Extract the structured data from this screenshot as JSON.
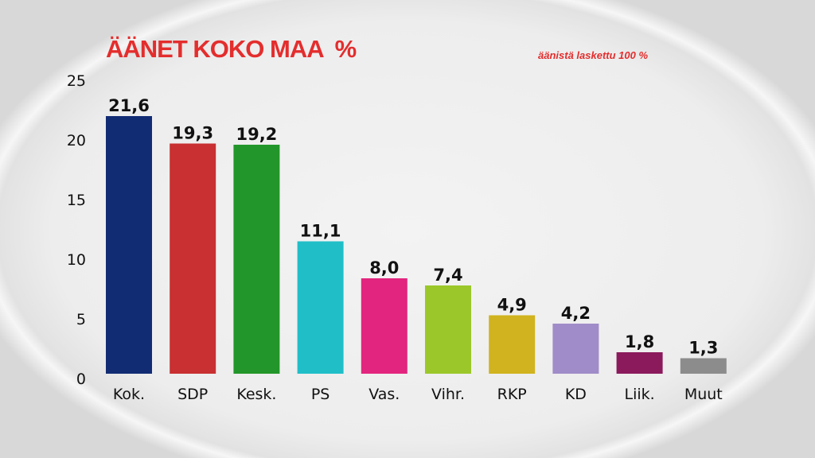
{
  "chart_data": {
    "type": "bar",
    "title": "ÄÄNET KOKO MAA  %",
    "subtitle": "äänistä laskettu 100 %",
    "xlabel": "",
    "ylabel": "",
    "ylim": [
      0,
      25
    ],
    "yticks": [
      0,
      5,
      10,
      15,
      20,
      25
    ],
    "grid": false,
    "categories": [
      "Kok.",
      "SDP",
      "Kesk.",
      "PS",
      "Vas.",
      "Vihr.",
      "RKP",
      "KD",
      "Liik.",
      "Muut"
    ],
    "values": [
      21.6,
      19.3,
      19.2,
      11.1,
      8.0,
      7.4,
      4.9,
      4.2,
      1.8,
      1.3
    ],
    "value_labels": [
      "21,6",
      "19,3",
      "19,2",
      "11,1",
      "8,0",
      "7,4",
      "4,9",
      "4,2",
      "1,8",
      "1,3"
    ],
    "colors": [
      "#122c74",
      "#c83032",
      "#22962a",
      "#20bfc8",
      "#e2257e",
      "#9cc72a",
      "#d0b31e",
      "#a08cc8",
      "#8b1a5c",
      "#8c8c8c"
    ]
  }
}
